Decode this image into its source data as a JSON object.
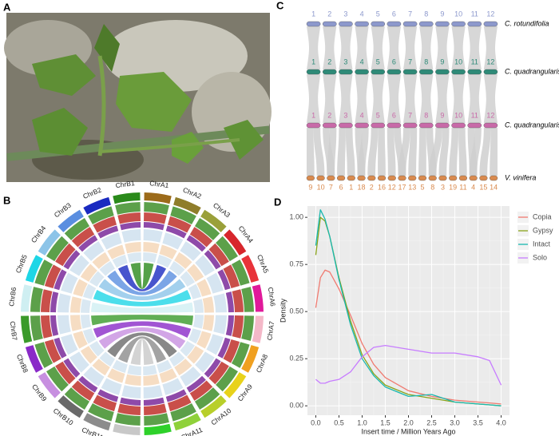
{
  "panel_labels": [
    "A",
    "B",
    "C",
    "D"
  ],
  "synteny": {
    "rows": [
      {
        "species": "C. rotundifolia",
        "color": "#8c98cc",
        "chromosomes": [
          "1",
          "2",
          "3",
          "4",
          "5",
          "6",
          "7",
          "8",
          "9",
          "10",
          "11",
          "12"
        ]
      },
      {
        "species": "C. quadrangularis A",
        "color": "#2e8a78",
        "chromosomes": [
          "1",
          "2",
          "3",
          "4",
          "5",
          "6",
          "7",
          "8",
          "9",
          "10",
          "11",
          "12"
        ]
      },
      {
        "species": "C. quadrangularis B",
        "color": "#c86aa8",
        "chromosomes": [
          "1",
          "2",
          "3",
          "4",
          "5",
          "6",
          "7",
          "8",
          "9",
          "10",
          "11",
          "12"
        ]
      },
      {
        "species": "V. vinifera",
        "color": "#d98a4e",
        "chromosomes": [
          "9",
          "10",
          "7",
          "6",
          "1",
          "18",
          "2",
          "16",
          "12",
          "17",
          "13",
          "5",
          "8",
          "3",
          "19",
          "11",
          "4",
          "15",
          "14"
        ]
      }
    ]
  },
  "circos": {
    "chromosomes": [
      {
        "label": "ChrA1",
        "color": "#9c6b1a"
      },
      {
        "label": "ChrA2",
        "color": "#8f7d2a"
      },
      {
        "label": "ChrA3",
        "color": "#9aa03a"
      },
      {
        "label": "ChrA4",
        "color": "#d7262c"
      },
      {
        "label": "ChrA5",
        "color": "#e8333a"
      },
      {
        "label": "ChrA6",
        "color": "#e0199a"
      },
      {
        "label": "ChrA7",
        "color": "#f4b8c8"
      },
      {
        "label": "ChrA8",
        "color": "#f0a020"
      },
      {
        "label": "ChrA9",
        "color": "#e8d21a"
      },
      {
        "label": "ChrA10",
        "color": "#b8cf2a"
      },
      {
        "label": "ChrA11",
        "color": "#8fd13a"
      },
      {
        "label": "ChrA12",
        "color": "#2ed12a"
      },
      {
        "label": "ChrB12",
        "color": "#c8c8c8"
      },
      {
        "label": "ChrB11",
        "color": "#8c8c8c"
      },
      {
        "label": "ChrB10",
        "color": "#6a6a6a"
      },
      {
        "label": "ChrB9",
        "color": "#c78fe0"
      },
      {
        "label": "ChrB8",
        "color": "#8a2ac8"
      },
      {
        "label": "ChrB7",
        "color": "#3a9a2a"
      },
      {
        "label": "ChrB6",
        "color": "#cfeff2"
      },
      {
        "label": "ChrB5",
        "color": "#1ed6e6"
      },
      {
        "label": "ChrB4",
        "color": "#8cc4e8"
      },
      {
        "label": "ChrB3",
        "color": "#5a8ee0"
      },
      {
        "label": "ChrB2",
        "color": "#1a2ac0"
      },
      {
        "label": "ChrB1",
        "color": "#2a8a1a"
      }
    ]
  },
  "chart_data": {
    "type": "line",
    "xlabel": "Insert time / Million Years Ago",
    "ylabel": "Density",
    "x": [
      0,
      0.1,
      0.2,
      0.3,
      0.5,
      0.75,
      1.0,
      1.25,
      1.5,
      2.0,
      2.5,
      3.0,
      3.5,
      3.75,
      4.0
    ],
    "series": [
      {
        "name": "Copia",
        "color": "#f07a70",
        "values": [
          0.52,
          0.68,
          0.72,
          0.71,
          0.62,
          0.48,
          0.33,
          0.22,
          0.15,
          0.08,
          0.05,
          0.03,
          0.02,
          0.015,
          0.01
        ]
      },
      {
        "name": "Gypsy",
        "color": "#8aa31a",
        "values": [
          0.8,
          1.0,
          0.98,
          0.9,
          0.68,
          0.45,
          0.27,
          0.17,
          0.11,
          0.06,
          0.04,
          0.02,
          0.01,
          0.005,
          0.0
        ]
      },
      {
        "name": "Intact",
        "color": "#19b8b0",
        "values": [
          0.85,
          1.04,
          0.99,
          0.9,
          0.67,
          0.43,
          0.25,
          0.16,
          0.1,
          0.05,
          0.06,
          0.02,
          0.01,
          0.005,
          0.0
        ]
      },
      {
        "name": "Solo",
        "color": "#c77cff",
        "values": [
          0.14,
          0.12,
          0.12,
          0.13,
          0.14,
          0.18,
          0.26,
          0.31,
          0.32,
          0.3,
          0.28,
          0.28,
          0.26,
          0.24,
          0.11
        ]
      }
    ],
    "xlim": [
      -0.18,
      4.18
    ],
    "ylim": [
      -0.05,
      1.06
    ],
    "xticks": [
      {
        "value": 0,
        "label": "0.0"
      },
      {
        "value": 0.5,
        "label": "0.5"
      },
      {
        "value": 1,
        "label": "1.0"
      },
      {
        "value": 1.5,
        "label": "1.5"
      },
      {
        "value": 2,
        "label": "2.0"
      },
      {
        "value": 2.5,
        "label": "2.5"
      },
      {
        "value": 3,
        "label": "3.0"
      },
      {
        "value": 3.5,
        "label": "3.5"
      },
      {
        "value": 4,
        "label": "4.0"
      }
    ],
    "yticks": [
      {
        "value": 0,
        "label": "0.00"
      },
      {
        "value": 0.25,
        "label": "0.25"
      },
      {
        "value": 0.5,
        "label": "0.50"
      },
      {
        "value": 0.75,
        "label": "0.75"
      },
      {
        "value": 1,
        "label": "1.00"
      }
    ],
    "grid": true,
    "legend": "right"
  }
}
